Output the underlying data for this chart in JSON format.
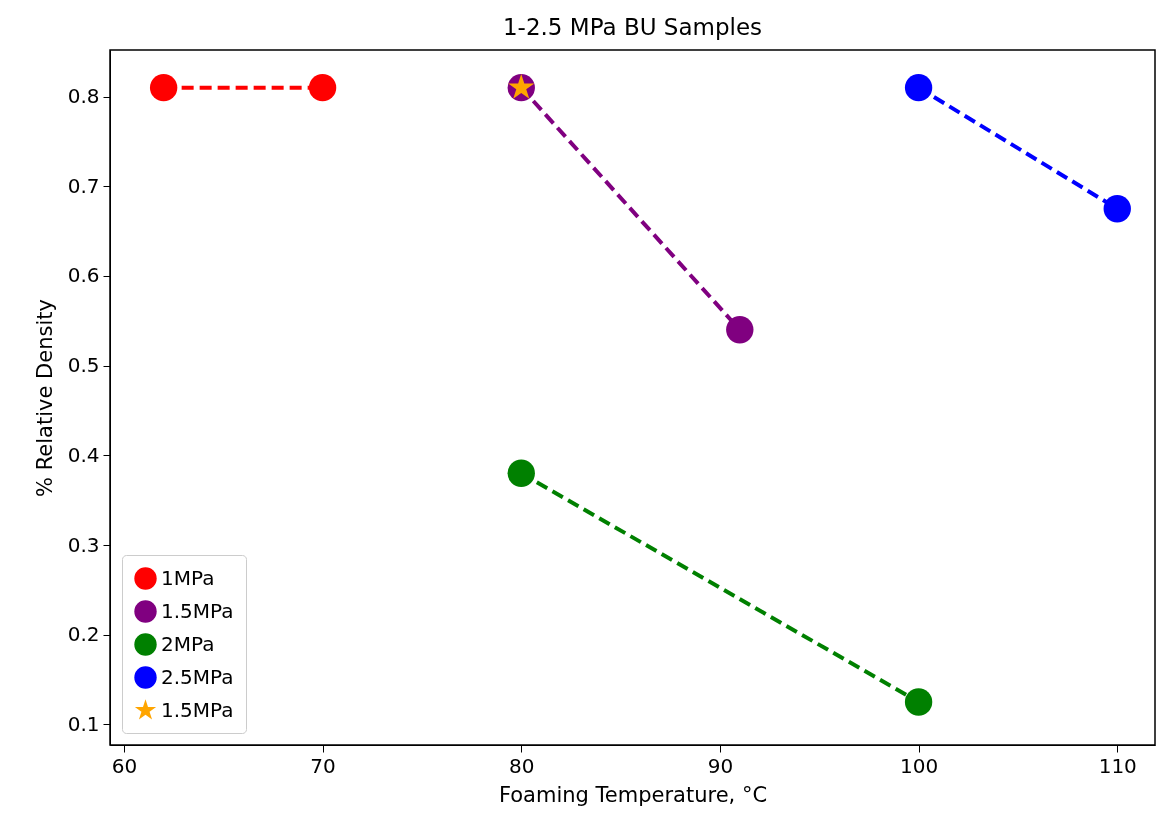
{
  "chart_data": {
    "type": "line",
    "title": "1-2.5 MPa BU Samples",
    "xlabel": "Foaming Temperature, °C",
    "ylabel": "% Relative Density",
    "xlim": [
      59.3,
      111.9
    ],
    "xticks": [
      60,
      70,
      80,
      90,
      100,
      110
    ],
    "ylim": [
      0.077,
      0.852
    ],
    "yticks": [
      0.1,
      0.2,
      0.3,
      0.4,
      0.5,
      0.6,
      0.7,
      0.8
    ],
    "grid": false,
    "legend": "bottom left",
    "line_style": "dashed",
    "series": [
      {
        "name": "1MPa",
        "color": "#ff0000",
        "marker": "circle",
        "x": [
          62,
          70
        ],
        "values": [
          0.81,
          0.81
        ]
      },
      {
        "name": "1.5MPa",
        "color": "#800080",
        "marker": "circle",
        "x": [
          80,
          91
        ],
        "values": [
          0.81,
          0.54
        ]
      },
      {
        "name": "2MPa",
        "color": "#008000",
        "marker": "circle",
        "x": [
          80,
          100
        ],
        "values": [
          0.38,
          0.125
        ]
      },
      {
        "name": "2.5MPa",
        "color": "#0000ff",
        "marker": "circle",
        "x": [
          100,
          110
        ],
        "values": [
          0.81,
          0.675
        ]
      },
      {
        "name": "1.5MPa",
        "color": "#ffa500",
        "marker": "star",
        "x": [
          80
        ],
        "values": [
          0.81
        ]
      }
    ]
  }
}
